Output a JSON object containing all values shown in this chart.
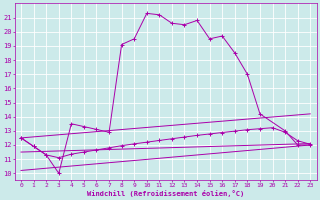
{
  "xlabel": "Windchill (Refroidissement éolien,°C)",
  "xlim": [
    -0.5,
    23.5
  ],
  "ylim": [
    9.5,
    22
  ],
  "yticks": [
    10,
    11,
    12,
    13,
    14,
    15,
    16,
    17,
    18,
    19,
    20,
    21
  ],
  "xticks": [
    0,
    1,
    2,
    3,
    4,
    5,
    6,
    7,
    8,
    9,
    10,
    11,
    12,
    13,
    14,
    15,
    16,
    17,
    18,
    19,
    20,
    21,
    22,
    23
  ],
  "bg_color": "#cceaea",
  "line_color": "#aa00aa",
  "grid_color": "#ffffff",
  "curve1_x": [
    0,
    1,
    2,
    3,
    4,
    5,
    6,
    7,
    8,
    9,
    10,
    11,
    12,
    13,
    14,
    15,
    16,
    17,
    18,
    19,
    21,
    22,
    23
  ],
  "curve1_y": [
    12.5,
    11.9,
    11.3,
    10.0,
    13.5,
    13.3,
    13.1,
    12.9,
    19.1,
    19.5,
    21.3,
    21.2,
    20.6,
    20.5,
    20.8,
    19.5,
    19.7,
    18.5,
    17.0,
    14.2,
    13.0,
    12.0,
    12.0
  ],
  "curve2_x": [
    0,
    1,
    2,
    3,
    4,
    5,
    6,
    7,
    8,
    9,
    10,
    11,
    12,
    13,
    14,
    15,
    16,
    17,
    18,
    19,
    20,
    21,
    22,
    23
  ],
  "curve2_y": [
    12.5,
    11.9,
    11.3,
    11.1,
    11.35,
    11.5,
    11.65,
    11.8,
    11.95,
    12.08,
    12.2,
    12.32,
    12.44,
    12.56,
    12.68,
    12.78,
    12.88,
    12.98,
    13.08,
    13.15,
    13.22,
    12.9,
    12.3,
    12.05
  ],
  "line1_x": [
    0,
    23
  ],
  "line1_y": [
    12.5,
    14.2
  ],
  "line2_x": [
    0,
    23
  ],
  "line2_y": [
    11.5,
    12.1
  ],
  "line3_x": [
    0,
    23
  ],
  "line3_y": [
    10.2,
    12.0
  ],
  "figsize": [
    3.2,
    2.0
  ],
  "dpi": 100
}
